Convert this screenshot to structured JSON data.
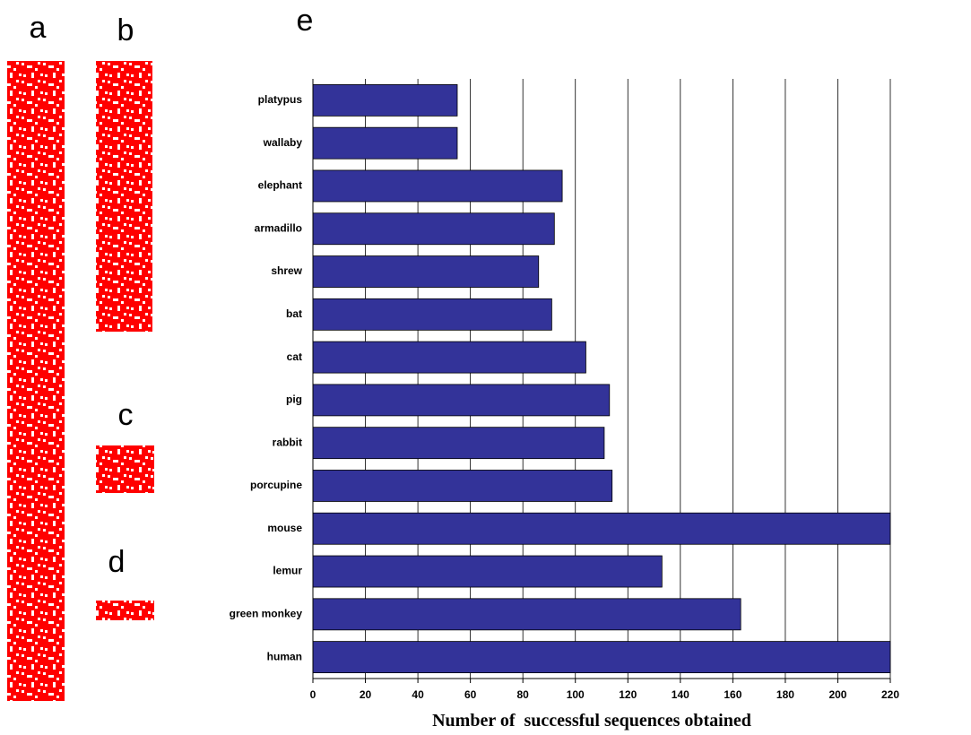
{
  "panel_labels": [
    "a",
    "b",
    "c",
    "d",
    "e"
  ],
  "chart_data": {
    "type": "bar",
    "categories": [
      "platypus",
      "wallaby",
      "elephant",
      "armadillo",
      "shrew",
      "bat",
      "cat",
      "pig",
      "rabbit",
      "porcupine",
      "mouse",
      "lemur",
      "green monkey",
      "human"
    ],
    "values": [
      55,
      55,
      95,
      92,
      86,
      91,
      104,
      113,
      111,
      114,
      220,
      133,
      163,
      220
    ],
    "color": "#333399",
    "xlabel": "Number of  successful sequences obtained",
    "xlim": [
      0,
      220
    ],
    "xticks": [
      0,
      20,
      40,
      60,
      80,
      100,
      120,
      140,
      160,
      180,
      200,
      220
    ],
    "grid": true
  }
}
